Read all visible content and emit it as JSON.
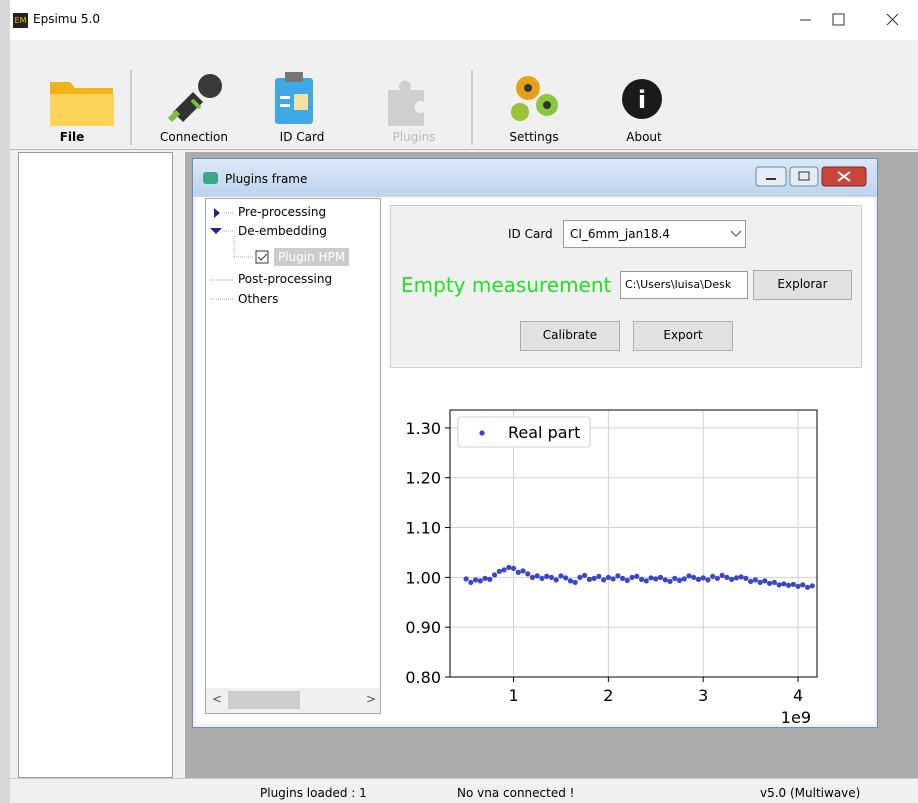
{
  "window": {
    "title": "Epsimu 5.0"
  },
  "toolbar": [
    "File",
    "Connection",
    "ID Card",
    "Plugins",
    "Settings",
    "About"
  ],
  "plugins_frame": {
    "title": "Plugins frame",
    "tree": [
      "Pre-processing",
      "De-embedding",
      "Plugin HPM",
      "Post-processing",
      "Others"
    ],
    "id_card_label": "ID Card",
    "id_card_value": "CI_6mm_jan18.4",
    "status": "Empty measurement",
    "path": "C:\\Users\\luisa\\Desk",
    "buttons": [
      "Explorar",
      "Calibrate",
      "Export"
    ]
  },
  "chart_data": {
    "type": "scatter",
    "x": [
      0.5,
      0.55,
      0.6,
      0.65,
      0.7,
      0.75,
      0.8,
      0.85,
      0.9,
      0.95,
      1,
      1.05,
      1.1,
      1.15,
      1.2,
      1.25,
      1.3,
      1.35,
      1.4,
      1.45,
      1.5,
      1.55,
      1.6,
      1.65,
      1.7,
      1.75,
      1.8,
      1.85,
      1.9,
      1.95,
      2,
      2.05,
      2.1,
      2.15,
      2.2,
      2.25,
      2.3,
      2.35,
      2.4,
      2.45,
      2.5,
      2.55,
      2.6,
      2.65,
      2.7,
      2.75,
      2.8,
      2.85,
      2.9,
      2.95,
      3,
      3.05,
      3.1,
      3.15,
      3.2,
      3.25,
      3.3,
      3.35,
      3.4,
      3.45,
      3.5,
      3.55,
      3.6,
      3.65,
      3.7,
      3.75,
      3.8,
      3.85,
      3.9,
      3.95,
      4,
      4.05,
      4.1,
      4.15
    ],
    "series": [
      {
        "name": "Real part",
        "color": "#3a45c8",
        "values": [
          0.997,
          0.99,
          0.995,
          0.993,
          0.998,
          0.996,
          1.005,
          1.012,
          1.015,
          1.02,
          1.018,
          1.01,
          1.013,
          1.007,
          1.0,
          1.003,
          0.998,
          1.002,
          1.0,
          0.995,
          1.003,
          0.999,
          0.993,
          0.99,
          1.0,
          1.004,
          0.996,
          0.998,
          1.002,
          0.995,
          1.0,
          0.997,
          1.003,
          0.998,
          0.994,
          1.0,
          1.002,
          0.996,
          0.993,
          0.999,
          0.997,
          1.0,
          0.995,
          0.992,
          0.998,
          0.994,
          0.997,
          1.003,
          1.0,
          0.996,
          0.999,
          0.995,
          1.002,
          0.998,
          1.004,
          1.0,
          0.996,
          0.999,
          1.001,
          0.998,
          0.992,
          0.995,
          0.99,
          0.993,
          0.988,
          0.99,
          0.985,
          0.987,
          0.984,
          0.986,
          0.982,
          0.985,
          0.98,
          0.983
        ]
      }
    ],
    "xlim": [
      0.33,
      4.2
    ],
    "xticks": [
      1,
      2,
      3,
      4
    ],
    "x_offset_label": "1e9",
    "ylim": [
      0.8,
      1.336
    ],
    "yticks": [
      {
        "value": 0.8,
        "label": "0.80"
      },
      {
        "value": 0.9,
        "label": "0.90"
      },
      {
        "value": 1.0,
        "label": "1.00"
      },
      {
        "value": 1.1,
        "label": "1.10"
      },
      {
        "value": 1.2,
        "label": "1.20"
      },
      {
        "value": 1.3,
        "label": "1.30"
      }
    ],
    "grid": true,
    "legend": "upper left"
  },
  "status_bar": [
    "Plugins loaded : 1",
    "No vna connected !",
    "v5.0 (Multiwave)"
  ]
}
